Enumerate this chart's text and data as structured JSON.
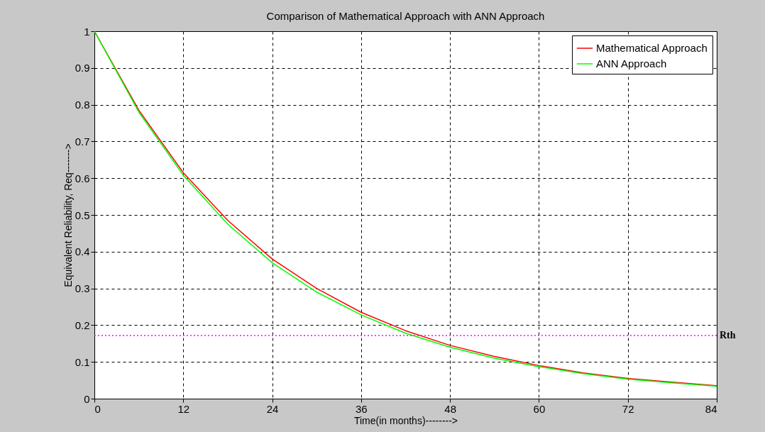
{
  "chart_data": {
    "type": "line",
    "title": "Comparison of Mathematical Approach with ANN Approach",
    "xlabel": "Time(in months)-------->",
    "ylabel": "Equivalent Reliability, Req------->",
    "x": [
      0,
      6,
      12,
      18,
      24,
      30,
      36,
      42,
      48,
      54,
      60,
      66,
      72,
      78,
      84
    ],
    "series": [
      {
        "name": "Mathematical Approach",
        "color": "#ff0000",
        "values": [
          1,
          0.785,
          0.615,
          0.485,
          0.38,
          0.3,
          0.235,
          0.185,
          0.145,
          0.115,
          0.09,
          0.07,
          0.055,
          0.045,
          0.035
        ]
      },
      {
        "name": "ANN Approach",
        "color": "#00ff00",
        "values": [
          1,
          0.78,
          0.608,
          0.475,
          0.37,
          0.29,
          0.228,
          0.178,
          0.14,
          0.11,
          0.087,
          0.068,
          0.053,
          0.043,
          0.034
        ]
      }
    ],
    "xlim": [
      0,
      84
    ],
    "xticks": [
      0,
      12,
      24,
      36,
      48,
      60,
      72,
      84
    ],
    "ylim": [
      0,
      1
    ],
    "yticks": [
      0,
      0.1,
      0.2,
      0.3,
      0.4,
      0.5,
      0.6,
      0.7,
      0.8,
      0.9,
      1
    ],
    "ref_lines": [
      {
        "axis": "y",
        "value": 0.172,
        "label": "Rth",
        "color": "#ff00ff",
        "line_style": "dotted"
      }
    ],
    "grid": true,
    "legend": "top right",
    "line_style": "solid"
  }
}
